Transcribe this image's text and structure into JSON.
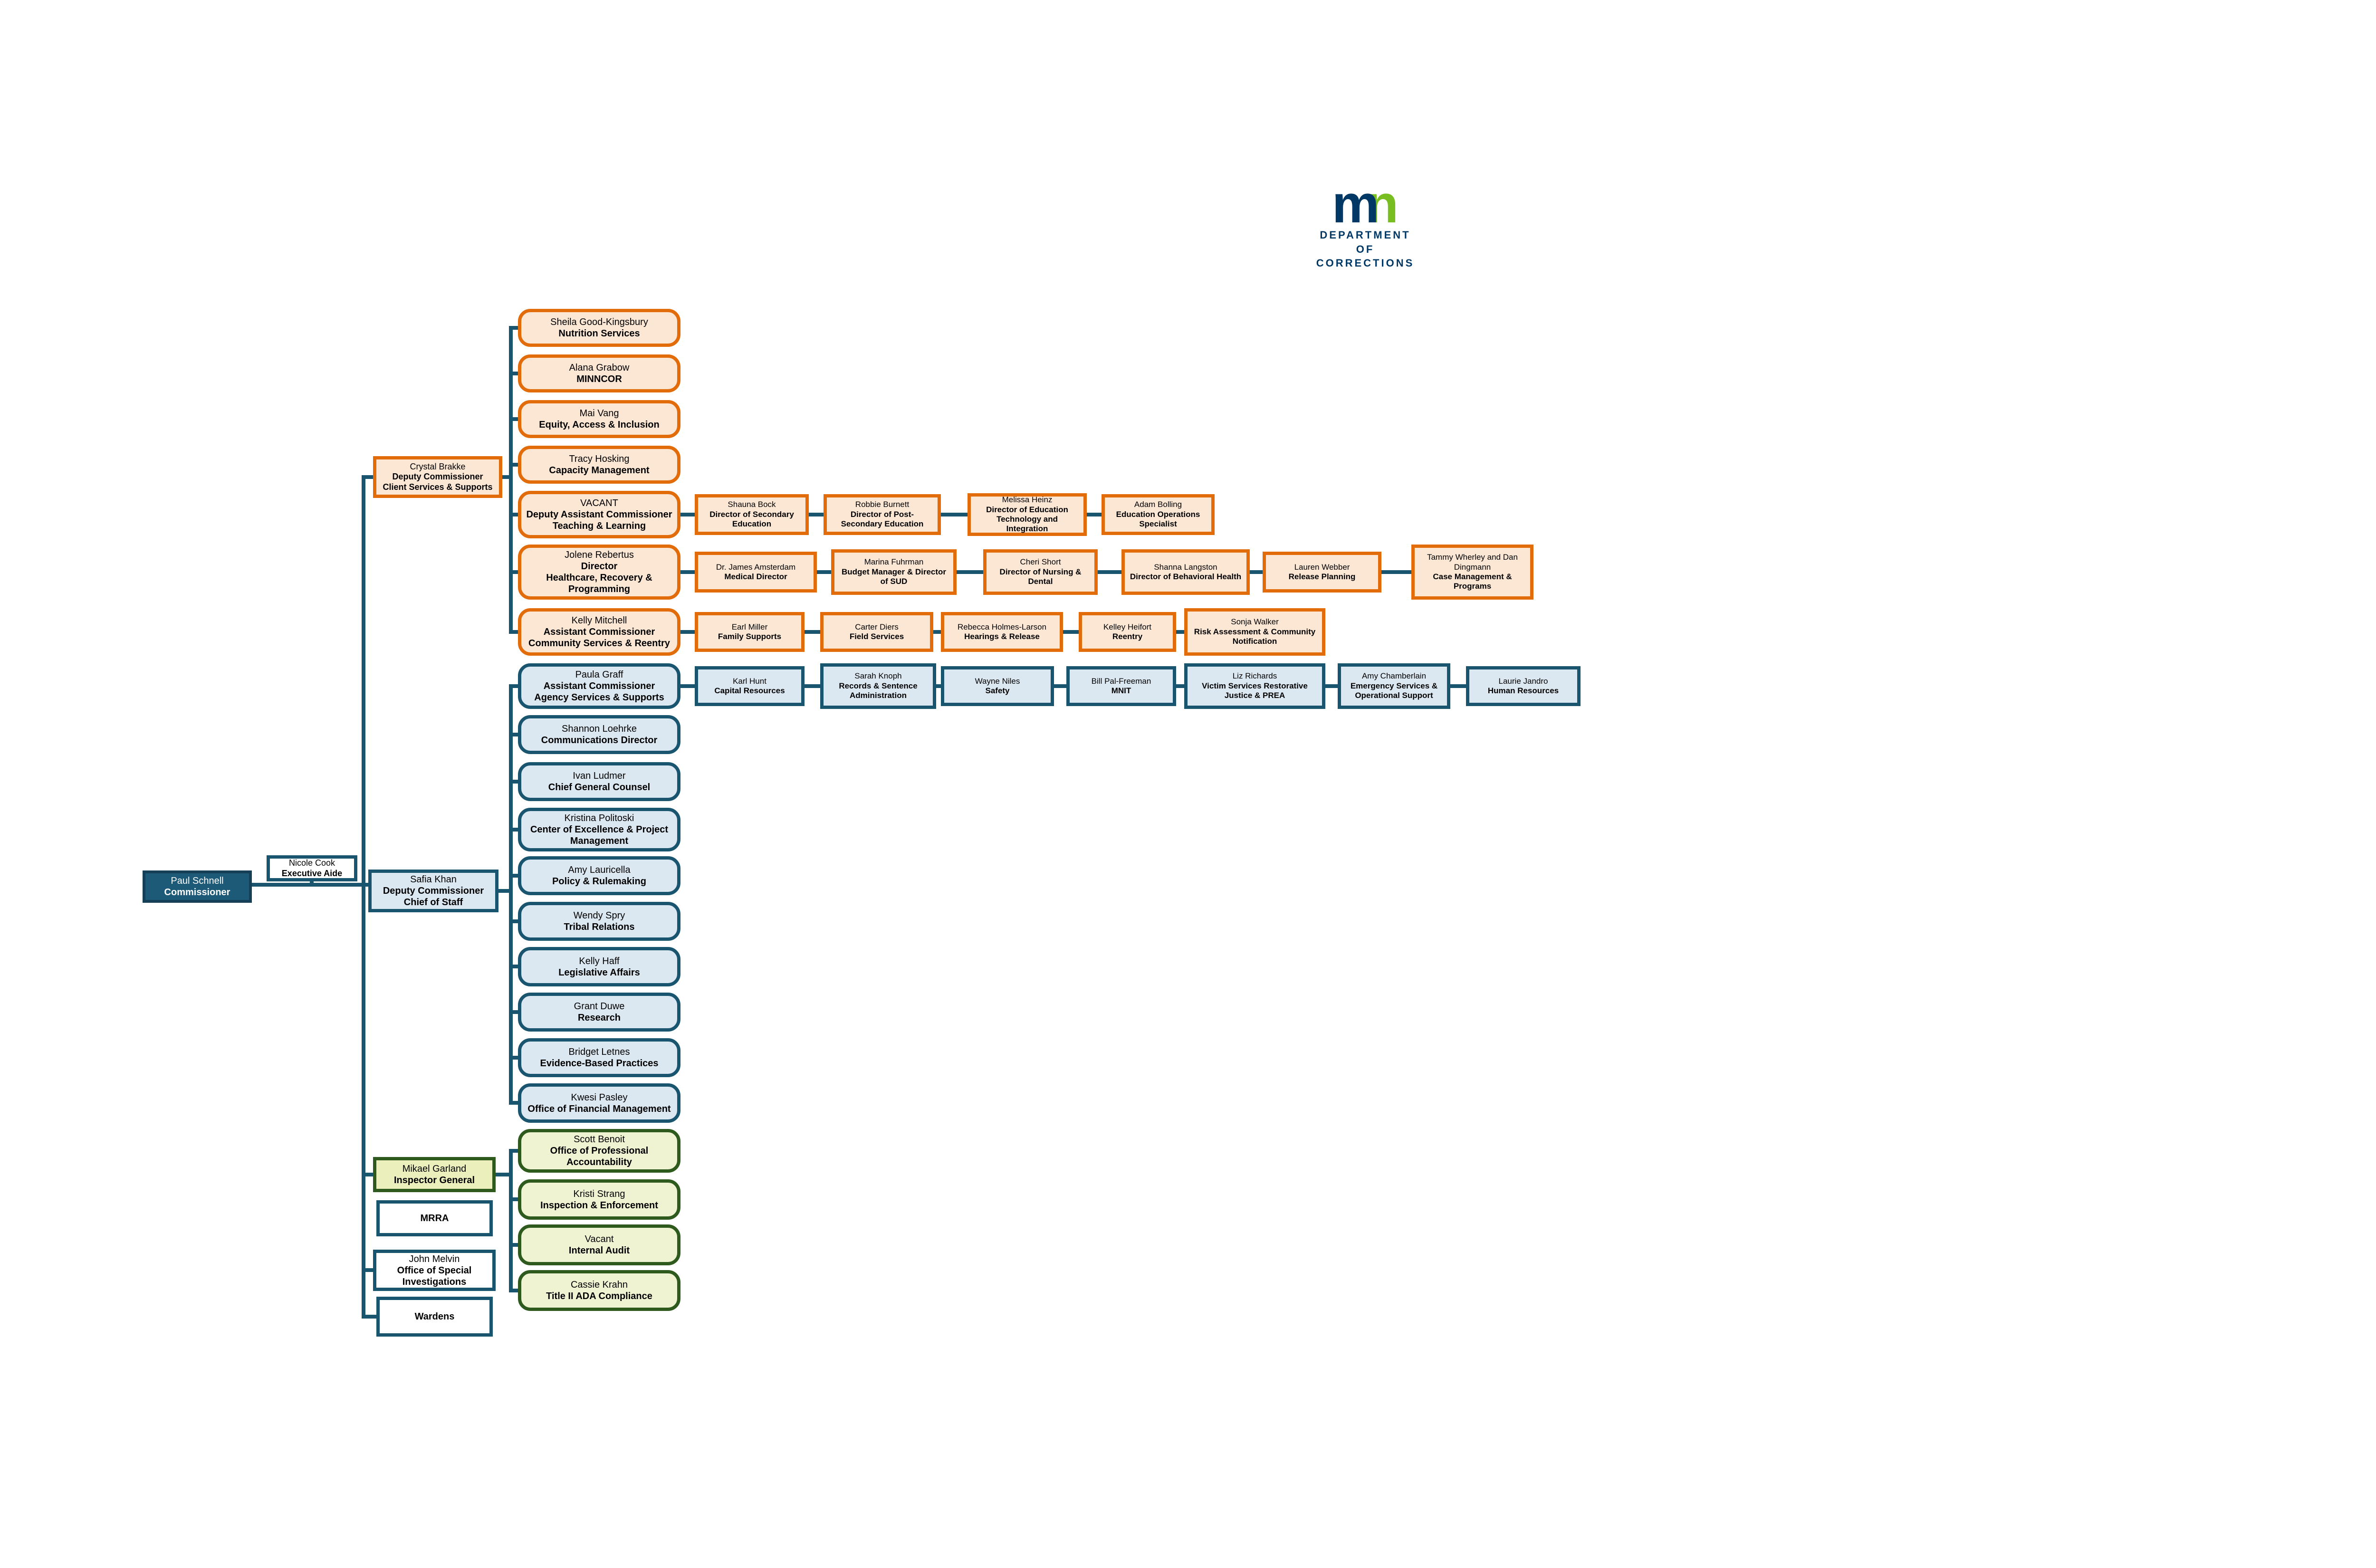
{
  "logo": {
    "mark_m": "m",
    "mark_n": "n",
    "dept_line1": "DEPARTMENT",
    "dept_line2": "OF CORRECTIONS"
  },
  "palette": {
    "connector": "#1a5570",
    "dark_box_fill": "#1d5a78",
    "blue_fill": "#dbe7f1",
    "blue_border": "#1a5570",
    "orange_fill": "#fce6d4",
    "orange_border": "#e26b0a",
    "green_fill": "#eff3d2",
    "green_border": "#2f5a1d",
    "yellow_green_fill": "#eaefbb",
    "logo_navy": "#003865",
    "logo_green": "#78be21"
  },
  "boxes": [
    {
      "id": "paul",
      "lines": [
        "Paul Schnell",
        "Commissioner"
      ]
    },
    {
      "id": "nicole",
      "lines": [
        "Nicole Cook",
        "Executive Aide"
      ]
    },
    {
      "id": "safia",
      "lines": [
        "Safia Khan",
        "Deputy Commissioner",
        "Chief of Staff"
      ]
    },
    {
      "id": "crystal",
      "lines": [
        "Crystal Brakke",
        "Deputy Commissioner",
        "Client Services & Supports"
      ]
    },
    {
      "id": "sheila",
      "lines": [
        "Sheila Good-Kingsbury",
        "Nutrition Services"
      ]
    },
    {
      "id": "alana",
      "lines": [
        "Alana Grabow",
        "MINNCOR"
      ]
    },
    {
      "id": "mai",
      "lines": [
        "Mai Vang",
        "Equity, Access & Inclusion"
      ]
    },
    {
      "id": "tracy",
      "lines": [
        "Tracy Hosking",
        "Capacity Management"
      ]
    },
    {
      "id": "vacant-tl",
      "lines": [
        "VACANT",
        "Deputy Assistant Commissioner",
        "Teaching & Learning"
      ]
    },
    {
      "id": "shauna",
      "lines": [
        "Shauna Bock",
        "Director of Secondary Education"
      ]
    },
    {
      "id": "robbie",
      "lines": [
        "Robbie Burnett",
        "Director of Post-Secondary Education"
      ]
    },
    {
      "id": "melissa",
      "lines": [
        "Melissa Heinz",
        "Director of Education Technology and Integration"
      ]
    },
    {
      "id": "adam",
      "lines": [
        "Adam Bolling",
        "Education Operations Specialist"
      ]
    },
    {
      "id": "jolene",
      "lines": [
        "Jolene Rebertus",
        "Director",
        "Healthcare, Recovery & Programming"
      ]
    },
    {
      "id": "drjames",
      "lines": [
        "Dr. James Amsterdam",
        "Medical Director"
      ]
    },
    {
      "id": "marina",
      "lines": [
        "Marina Fuhrman",
        "Budget Manager & Director of SUD"
      ]
    },
    {
      "id": "cheri",
      "lines": [
        "Cheri Short",
        "Director of Nursing & Dental"
      ]
    },
    {
      "id": "shanna",
      "lines": [
        "Shanna Langston",
        "Director of Behavioral Health"
      ]
    },
    {
      "id": "lauren",
      "lines": [
        "Lauren Webber",
        "Release Planning"
      ]
    },
    {
      "id": "tammy",
      "lines": [
        "Tammy Wherley and Dan Dingmann",
        "Case Management & Programs"
      ]
    },
    {
      "id": "kelly-mitchell",
      "lines": [
        "Kelly Mitchell",
        "Assistant Commissioner",
        "Community Services & Reentry"
      ]
    },
    {
      "id": "earl",
      "lines": [
        "Earl Miller",
        "Family Supports"
      ]
    },
    {
      "id": "carter",
      "lines": [
        "Carter Diers",
        "Field Services"
      ]
    },
    {
      "id": "rebecca",
      "lines": [
        "Rebecca Holmes-Larson",
        "Hearings & Release"
      ]
    },
    {
      "id": "kelley",
      "lines": [
        "Kelley Heifort",
        "Reentry"
      ]
    },
    {
      "id": "sonja",
      "lines": [
        "Sonja Walker",
        "Risk Assessment & Community Notification"
      ]
    },
    {
      "id": "paula",
      "lines": [
        "Paula Graff",
        "Assistant Commissioner",
        "Agency Services & Supports"
      ]
    },
    {
      "id": "karl",
      "lines": [
        "Karl Hunt",
        "Capital Resources"
      ]
    },
    {
      "id": "sarah",
      "lines": [
        "Sarah Knoph",
        "Records & Sentence Administration"
      ]
    },
    {
      "id": "wayne",
      "lines": [
        "Wayne Niles",
        "Safety"
      ]
    },
    {
      "id": "bill",
      "lines": [
        "Bill Pal-Freeman",
        "MNIT"
      ]
    },
    {
      "id": "liz",
      "lines": [
        "Liz Richards",
        "Victim Services Restorative Justice & PREA"
      ]
    },
    {
      "id": "amy-chamberlain",
      "lines": [
        "Amy Chamberlain",
        "Emergency Services & Operational Support"
      ]
    },
    {
      "id": "laurie",
      "lines": [
        "Laurie Jandro",
        "Human Resources"
      ]
    },
    {
      "id": "shannon",
      "lines": [
        "Shannon Loehrke",
        "Communications Director"
      ]
    },
    {
      "id": "ivan",
      "lines": [
        "Ivan Ludmer",
        "Chief General Counsel"
      ]
    },
    {
      "id": "kristina",
      "lines": [
        "Kristina Politoski",
        "Center of Excellence & Project Management"
      ]
    },
    {
      "id": "amy-lauricella",
      "lines": [
        "Amy Lauricella",
        "Policy & Rulemaking"
      ]
    },
    {
      "id": "wendy",
      "lines": [
        "Wendy Spry",
        "Tribal Relations"
      ]
    },
    {
      "id": "kelly-haff",
      "lines": [
        "Kelly Haff",
        "Legislative Affairs"
      ]
    },
    {
      "id": "grant",
      "lines": [
        "Grant Duwe",
        "Research"
      ]
    },
    {
      "id": "bridget",
      "lines": [
        "Bridget Letnes",
        "Evidence-Based Practices"
      ]
    },
    {
      "id": "kwesi",
      "lines": [
        "Kwesi Pasley",
        "Office of Financial Management"
      ]
    },
    {
      "id": "mikael",
      "lines": [
        "Mikael Garland",
        "Inspector General"
      ]
    },
    {
      "id": "mrra",
      "lines": [
        "MRRA"
      ],
      "allBold": true
    },
    {
      "id": "john",
      "lines": [
        "John Melvin",
        "Office of Special Investigations"
      ]
    },
    {
      "id": "wardens",
      "lines": [
        "Wardens"
      ],
      "allBold": true
    },
    {
      "id": "scott",
      "lines": [
        "Scott Benoit",
        "Office of Professional Accountability"
      ]
    },
    {
      "id": "kristi",
      "lines": [
        "Kristi Strang",
        "Inspection & Enforcement"
      ]
    },
    {
      "id": "vacant-ia",
      "lines": [
        "Vacant",
        "Internal Audit"
      ]
    },
    {
      "id": "cassie",
      "lines": [
        "Cassie Krahn",
        "Title II ADA Compliance"
      ]
    }
  ]
}
